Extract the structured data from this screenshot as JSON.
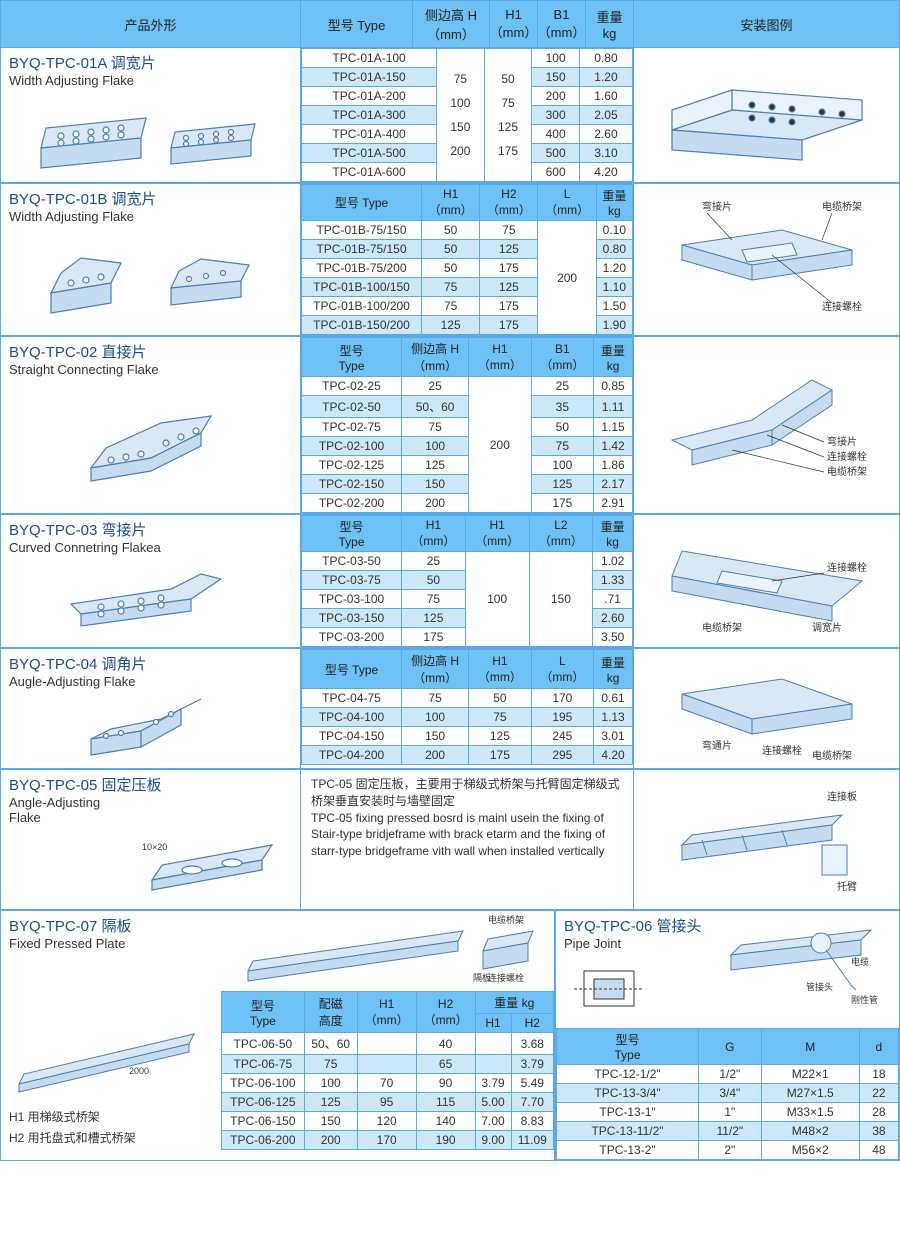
{
  "colors": {
    "border": "#5aa9e6",
    "header_bg": "#6ec1f5",
    "alt_row": "#cde9f9",
    "title": "#1a4d8f"
  },
  "main_header": {
    "shape": "产品外形",
    "type": "型号 Type",
    "side_h": "侧边高 H\n（mm）",
    "h1": "H1\n（mm）",
    "b1": "B1\n（mm）",
    "weight": "重量\nkg",
    "install": "安装图例"
  },
  "sec01a": {
    "title_cn": "BYQ-TPC-01A 调宽片",
    "title_en": "Width Adjusting Flake",
    "side_h_vals": "75\n100\n150\n200",
    "h1_vals": "50\n75\n125\n175",
    "rows": [
      {
        "type": "TPC-01A-100",
        "b1": "100",
        "kg": "0.80",
        "alt": false
      },
      {
        "type": "TPC-01A-150",
        "b1": "150",
        "kg": "1.20",
        "alt": true
      },
      {
        "type": "TPC-01A-200",
        "b1": "200",
        "kg": "1.60",
        "alt": false
      },
      {
        "type": "TPC-01A-300",
        "b1": "300",
        "kg": "2.05",
        "alt": true
      },
      {
        "type": "TPC-01A-400",
        "b1": "400",
        "kg": "2.60",
        "alt": false
      },
      {
        "type": "TPC-01A-500",
        "b1": "500",
        "kg": "3.10",
        "alt": true
      },
      {
        "type": "TPC-01A-600",
        "b1": "600",
        "kg": "4.20",
        "alt": false
      }
    ]
  },
  "sec01b": {
    "title_cn": "BYQ-TPC-01B 调宽片",
    "title_en": "Width Adjusting Flake",
    "hdr": {
      "type": "型号 Type",
      "h1": "H1\n（mm）",
      "h2": "H2\n（mm）",
      "l": "L\n（mm）",
      "kg": "重量\nkg"
    },
    "l_val": "200",
    "rows": [
      {
        "type": "TPC-01B-75/150",
        "h1": "50",
        "h2": "75",
        "kg": "0.10",
        "alt": false
      },
      {
        "type": "TPC-01B-75/150",
        "h1": "50",
        "h2": "125",
        "kg": "0.80",
        "alt": true
      },
      {
        "type": "TPC-01B-75/200",
        "h1": "50",
        "h2": "175",
        "kg": "1.20",
        "alt": false
      },
      {
        "type": "TPC-01B-100/150",
        "h1": "75",
        "h2": "125",
        "kg": "1.10",
        "alt": true
      },
      {
        "type": "TPC-01B-100/200",
        "h1": "75",
        "h2": "175",
        "kg": "1.50",
        "alt": false
      },
      {
        "type": "TPC-01B-150/200",
        "h1": "125",
        "h2": "175",
        "kg": "1.90",
        "alt": true
      }
    ]
  },
  "sec02": {
    "title_cn": "BYQ-TPC-02 直接片",
    "title_en": "Straight Connecting Flake",
    "hdr": {
      "type": "型号\nType",
      "side": "侧边高 H\n（mm）",
      "h1": "H1\n（mm）",
      "b1": "B1\n（mm）",
      "kg": "重量\nkg"
    },
    "h1_val": "200",
    "rows": [
      {
        "type": "TPC-02-25",
        "side": "25",
        "b1": "25",
        "kg": "0.85",
        "alt": false
      },
      {
        "type": "TPC-02-50",
        "side": "50、60",
        "b1": "35",
        "kg": "1.11",
        "alt": true
      },
      {
        "type": "TPC-02-75",
        "side": "75",
        "b1": "50",
        "kg": "1.15",
        "alt": false
      },
      {
        "type": "TPC-02-100",
        "side": "100",
        "b1": "75",
        "kg": "1.42",
        "alt": true
      },
      {
        "type": "TPC-02-125",
        "side": "125",
        "b1": "100",
        "kg": "1.86",
        "alt": false
      },
      {
        "type": "TPC-02-150",
        "side": "150",
        "b1": "125",
        "kg": "2.17",
        "alt": true
      },
      {
        "type": "TPC-02-200",
        "side": "200",
        "b1": "175",
        "kg": "2.91",
        "alt": false
      }
    ]
  },
  "sec03": {
    "title_cn": "BYQ-TPC-03 弯接片",
    "title_en": "Curved Connetring Flakea",
    "hdr": {
      "type": "型号\nType",
      "h1": "H1\n（mm）",
      "h1b": "H1\n（mm）",
      "l2": "L2\n（mm）",
      "kg": "重量\nkg"
    },
    "h1b_val": "100",
    "l2_val": "150",
    "rows": [
      {
        "type": "TPC-03-50",
        "h1": "25",
        "kg": "1.02",
        "alt": false
      },
      {
        "type": "TPC-03-75",
        "h1": "50",
        "kg": "1.33",
        "alt": true
      },
      {
        "type": "TPC-03-100",
        "h1": "75",
        "kg": ".71",
        "alt": false
      },
      {
        "type": "TPC-03-150",
        "h1": "125",
        "kg": "2.60",
        "alt": true
      },
      {
        "type": "TPC-03-200",
        "h1": "175",
        "kg": "3.50",
        "alt": false
      }
    ]
  },
  "sec04": {
    "title_cn": "BYQ-TPC-04 调角片",
    "title_en": "Augle-Adjusting Flake",
    "hdr": {
      "type": "型号 Type",
      "side": "侧边高 H\n（mm）",
      "h1": "H1\n（mm）",
      "l": "L\n（mm）",
      "kg": "重量\nkg"
    },
    "rows": [
      {
        "type": "TPC-04-75",
        "side": "75",
        "h1": "50",
        "l": "170",
        "kg": "0.61",
        "alt": false
      },
      {
        "type": "TPC-04-100",
        "side": "100",
        "h1": "75",
        "l": "195",
        "kg": "1.13",
        "alt": true
      },
      {
        "type": "TPC-04-150",
        "side": "150",
        "h1": "125",
        "l": "245",
        "kg": "3.01",
        "alt": false
      },
      {
        "type": "TPC-04-200",
        "side": "200",
        "h1": "175",
        "l": "295",
        "kg": "4.20",
        "alt": true
      }
    ]
  },
  "sec05": {
    "title_cn": "BYQ-TPC-05 固定压板",
    "title_en": "Angle-Adjusting\nFlake",
    "desc": "TPC-05 固定压板，主要用于梯级式桥架与托臂固定梯级式桥架垂直安装时与墙壁固定\nTPC-05 fixing pressed bosrd is mainl usein the fixing of Stair-type bridjeframe with brack etarm and the fixing of starr-type bridgeframe vith wall when installed vertically"
  },
  "sec07": {
    "title_cn": "BYQ-TPC-07 隔板",
    "title_en": "Fixed Pressed Plate",
    "hdr": {
      "type": "型号\nType",
      "mag": "配磁\n高度",
      "h1": "H1\n（mm）",
      "h2": "H2\n（mm）",
      "kg": "重量 kg",
      "kh1": "H1",
      "kh2": "H2"
    },
    "rows": [
      {
        "type": "TPC-06-50",
        "mag": "50、60",
        "h1": "",
        "h2": "40",
        "kh1": "",
        "kh2": "3.68",
        "alt": false
      },
      {
        "type": "TPC-06-75",
        "mag": "75",
        "h1": "",
        "h2": "65",
        "kh1": "",
        "kh2": "3.79",
        "alt": true
      },
      {
        "type": "TPC-06-100",
        "mag": "100",
        "h1": "70",
        "h2": "90",
        "kh1": "3.79",
        "kh2": "5.49",
        "alt": false
      },
      {
        "type": "TPC-06-125",
        "mag": "125",
        "h1": "95",
        "h2": "115",
        "kh1": "5.00",
        "kh2": "7.70",
        "alt": true
      },
      {
        "type": "TPC-06-150",
        "mag": "150",
        "h1": "120",
        "h2": "140",
        "kh1": "7.00",
        "kh2": "8.83",
        "alt": false
      },
      {
        "type": "TPC-06-200",
        "mag": "200",
        "h1": "170",
        "h2": "190",
        "kh1": "9.00",
        "kh2": "11.09",
        "alt": true
      }
    ],
    "note1": "H1 用梯级式桥架",
    "note2": "H2 用托盘式和槽式桥架"
  },
  "sec06": {
    "title_cn": "BYQ-TPC-06 管接头",
    "title_en": "Pipe Joint",
    "hdr": {
      "type": "型号\nType",
      "g": "G",
      "m": "M",
      "d": "d"
    },
    "rows": [
      {
        "type": "TPC-12-1/2\"",
        "g": "1/2\"",
        "m": "M22×1",
        "d": "18",
        "alt": false
      },
      {
        "type": "TPC-13-3/4\"",
        "g": "3/4\"",
        "m": "M27×1.5",
        "d": "22",
        "alt": true
      },
      {
        "type": "TPC-13-1\"",
        "g": "1\"",
        "m": "M33×1.5",
        "d": "28",
        "alt": false
      },
      {
        "type": "TPC-13-11/2\"",
        "g": "11/2\"",
        "m": "M48×2",
        "d": "38",
        "alt": true
      },
      {
        "type": "TPC-13-2\"",
        "g": "2\"",
        "m": "M56×2",
        "d": "48",
        "alt": false
      }
    ]
  }
}
